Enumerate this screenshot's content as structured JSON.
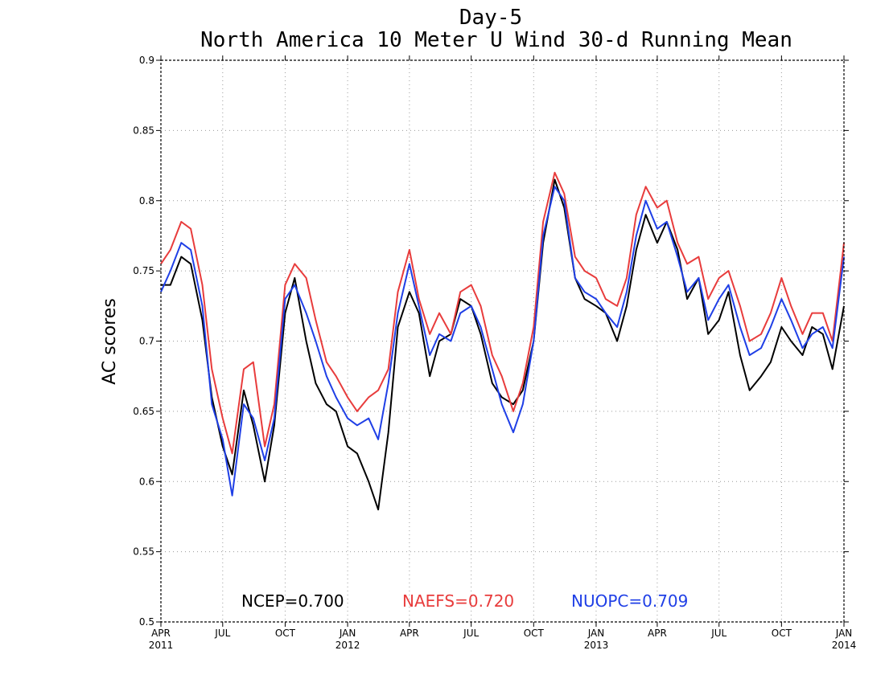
{
  "chart_data": {
    "type": "line",
    "title": "Day-5",
    "subtitle": "North America 10 Meter U Wind 30-d Running Mean",
    "ylabel": "AC scores",
    "xlabel": "",
    "ylim": [
      0.5,
      0.9
    ],
    "xlim": [
      "2011-04-01",
      "2014-01-01"
    ],
    "grid": true,
    "legend_position": "bottom-center",
    "y_ticks": [
      "0.5",
      "0.55",
      "0.6",
      "0.65",
      "0.7",
      "0.75",
      "0.8",
      "0.85",
      "0.9"
    ],
    "x_ticks": [
      {
        "date": "2011-04-01",
        "label": "APR",
        "year": "2011"
      },
      {
        "date": "2011-07-01",
        "label": "JUL",
        "year": ""
      },
      {
        "date": "2011-10-01",
        "label": "OCT",
        "year": ""
      },
      {
        "date": "2012-01-01",
        "label": "JAN",
        "year": "2012"
      },
      {
        "date": "2012-04-01",
        "label": "APR",
        "year": ""
      },
      {
        "date": "2012-07-01",
        "label": "JUL",
        "year": ""
      },
      {
        "date": "2012-10-01",
        "label": "OCT",
        "year": ""
      },
      {
        "date": "2013-01-01",
        "label": "JAN",
        "year": "2013"
      },
      {
        "date": "2013-04-01",
        "label": "APR",
        "year": ""
      },
      {
        "date": "2013-07-01",
        "label": "JUL",
        "year": ""
      },
      {
        "date": "2013-10-01",
        "label": "OCT",
        "year": ""
      },
      {
        "date": "2014-01-01",
        "label": "JAN",
        "year": "2014"
      }
    ],
    "x": [
      "2011-04-01",
      "2011-04-15",
      "2011-05-01",
      "2011-05-15",
      "2011-06-01",
      "2011-06-15",
      "2011-07-01",
      "2011-07-15",
      "2011-08-01",
      "2011-08-15",
      "2011-09-01",
      "2011-09-15",
      "2011-10-01",
      "2011-10-15",
      "2011-11-01",
      "2011-11-15",
      "2011-12-01",
      "2011-12-15",
      "2012-01-01",
      "2012-01-15",
      "2012-02-01",
      "2012-02-15",
      "2012-03-01",
      "2012-03-15",
      "2012-04-01",
      "2012-04-15",
      "2012-05-01",
      "2012-05-15",
      "2012-06-01",
      "2012-06-15",
      "2012-07-01",
      "2012-07-15",
      "2012-08-01",
      "2012-08-15",
      "2012-09-01",
      "2012-09-15",
      "2012-10-01",
      "2012-10-15",
      "2012-11-01",
      "2012-11-15",
      "2012-12-01",
      "2012-12-15",
      "2013-01-01",
      "2013-01-15",
      "2013-02-01",
      "2013-02-15",
      "2013-03-01",
      "2013-03-15",
      "2013-04-01",
      "2013-04-15",
      "2013-05-01",
      "2013-05-15",
      "2013-06-01",
      "2013-06-15",
      "2013-07-01",
      "2013-07-15",
      "2013-08-01",
      "2013-08-15",
      "2013-09-01",
      "2013-09-15",
      "2013-10-01",
      "2013-10-15",
      "2013-11-01",
      "2013-11-15",
      "2013-12-01",
      "2013-12-15",
      "2014-01-01"
    ],
    "series": [
      {
        "name": "NCEP",
        "color": "#000000",
        "values": [
          0.74,
          0.74,
          0.76,
          0.755,
          0.715,
          0.66,
          0.625,
          0.605,
          0.665,
          0.64,
          0.6,
          0.64,
          0.72,
          0.745,
          0.7,
          0.67,
          0.655,
          0.65,
          0.625,
          0.62,
          0.6,
          0.58,
          0.635,
          0.71,
          0.735,
          0.72,
          0.675,
          0.7,
          0.705,
          0.73,
          0.725,
          0.705,
          0.67,
          0.66,
          0.655,
          0.665,
          0.7,
          0.77,
          0.815,
          0.795,
          0.745,
          0.73,
          0.725,
          0.72,
          0.7,
          0.725,
          0.765,
          0.79,
          0.77,
          0.785,
          0.765,
          0.73,
          0.745,
          0.705,
          0.715,
          0.735,
          0.69,
          0.665,
          0.675,
          0.685,
          0.71,
          0.7,
          0.69,
          0.71,
          0.705,
          0.68,
          0.725
        ]
      },
      {
        "name": "NAEFS",
        "color": "#e83c3c",
        "values": [
          0.755,
          0.765,
          0.785,
          0.78,
          0.74,
          0.68,
          0.645,
          0.62,
          0.68,
          0.685,
          0.625,
          0.655,
          0.74,
          0.755,
          0.745,
          0.715,
          0.685,
          0.675,
          0.66,
          0.65,
          0.66,
          0.665,
          0.68,
          0.735,
          0.765,
          0.73,
          0.705,
          0.72,
          0.705,
          0.735,
          0.74,
          0.725,
          0.69,
          0.675,
          0.65,
          0.67,
          0.71,
          0.785,
          0.82,
          0.805,
          0.76,
          0.75,
          0.745,
          0.73,
          0.725,
          0.745,
          0.79,
          0.81,
          0.795,
          0.8,
          0.77,
          0.755,
          0.76,
          0.73,
          0.745,
          0.75,
          0.725,
          0.7,
          0.705,
          0.72,
          0.745,
          0.725,
          0.705,
          0.72,
          0.72,
          0.7,
          0.77
        ]
      },
      {
        "name": "NUOPC",
        "color": "#1f3fe6",
        "values": [
          0.735,
          0.75,
          0.77,
          0.765,
          0.725,
          0.655,
          0.63,
          0.59,
          0.655,
          0.645,
          0.615,
          0.645,
          0.73,
          0.74,
          0.72,
          0.7,
          0.675,
          0.66,
          0.645,
          0.64,
          0.645,
          0.63,
          0.67,
          0.72,
          0.755,
          0.725,
          0.69,
          0.705,
          0.7,
          0.72,
          0.725,
          0.71,
          0.68,
          0.655,
          0.635,
          0.655,
          0.7,
          0.775,
          0.81,
          0.8,
          0.745,
          0.735,
          0.73,
          0.72,
          0.71,
          0.735,
          0.775,
          0.8,
          0.78,
          0.785,
          0.76,
          0.735,
          0.745,
          0.715,
          0.73,
          0.74,
          0.71,
          0.69,
          0.695,
          0.71,
          0.73,
          0.715,
          0.695,
          0.705,
          0.71,
          0.695,
          0.76
        ]
      }
    ],
    "legend": [
      {
        "label": "NCEP=0.700",
        "color": "#000000"
      },
      {
        "label": "NAEFS=0.720",
        "color": "#e83c3c"
      },
      {
        "label": "NUOPC=0.709",
        "color": "#1f3fe6"
      }
    ]
  }
}
